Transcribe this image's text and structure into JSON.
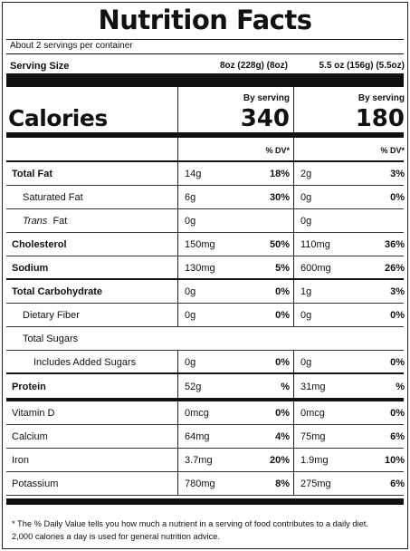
{
  "title": "Nutrition Facts",
  "servings_per_container": "About 2 servings per container",
  "serving_size": {
    "label": "Serving Size",
    "col1": "8oz (228g) (8oz)",
    "col2": "5.5 oz (156g) (5.5oz)"
  },
  "calories": {
    "label": "Calories",
    "col1_header": "By serving",
    "col2_header": "By serving",
    "col1_value": "340",
    "col2_value": "180"
  },
  "dv_header": {
    "col1": "% DV*",
    "col2": "% DV*"
  },
  "nutrients": [
    {
      "name": "Total Fat",
      "amt1": "14g",
      "pct1": "18%",
      "amt2": "2g",
      "pct2": "3%"
    },
    {
      "name": "Saturated Fat",
      "amt1": "6g",
      "pct1": "30%",
      "amt2": "0g",
      "pct2": "0%"
    },
    {
      "name_italic": "Trans",
      "name": "Fat",
      "amt1": "0g",
      "pct1": "",
      "amt2": "0g",
      "pct2": ""
    },
    {
      "name": "Cholesterol",
      "amt1": "150mg",
      "pct1": "50%",
      "amt2": "110mg",
      "pct2": "36%"
    },
    {
      "name": "Sodium",
      "amt1": "130mg",
      "pct1": "5%",
      "amt2": "600mg",
      "pct2": "26%"
    },
    {
      "name": "Total Carbohydrate",
      "amt1": "0g",
      "pct1": "0%",
      "amt2": "1g",
      "pct2": "3%"
    },
    {
      "name": "Dietary Fiber",
      "amt1": "0g",
      "pct1": "0%",
      "amt2": "0g",
      "pct2": "0%"
    },
    {
      "name": "Total Sugars",
      "amt1": "",
      "pct1": "",
      "amt2": "",
      "pct2": ""
    },
    {
      "name": "Includes Added Sugars",
      "amt1": "0g",
      "pct1": "0%",
      "amt2": "0g",
      "pct2": "0%"
    },
    {
      "name": "Protein",
      "amt1": "52g",
      "pct1": "%",
      "amt2": "31mg",
      "pct2": "%"
    },
    {
      "name": "Vitamin D",
      "amt1": "0mcg",
      "pct1": "0%",
      "amt2": "0mcg",
      "pct2": "0%"
    },
    {
      "name": "Calcium",
      "amt1": "64mg",
      "pct1": "4%",
      "amt2": "75mg",
      "pct2": "6%"
    },
    {
      "name": "Iron",
      "amt1": "3.7mg",
      "pct1": "20%",
      "amt2": "1.9mg",
      "pct2": "10%"
    },
    {
      "name": "Potassium",
      "amt1": "780mg",
      "pct1": "8%",
      "amt2": "275mg",
      "pct2": "6%"
    }
  ],
  "footnote_line1": "* The % Daily Value tells you how much a nutrient in a serving of food contributes to a daily diet.",
  "footnote_line2": "2,000 calories a day is used for general nutrition advice."
}
